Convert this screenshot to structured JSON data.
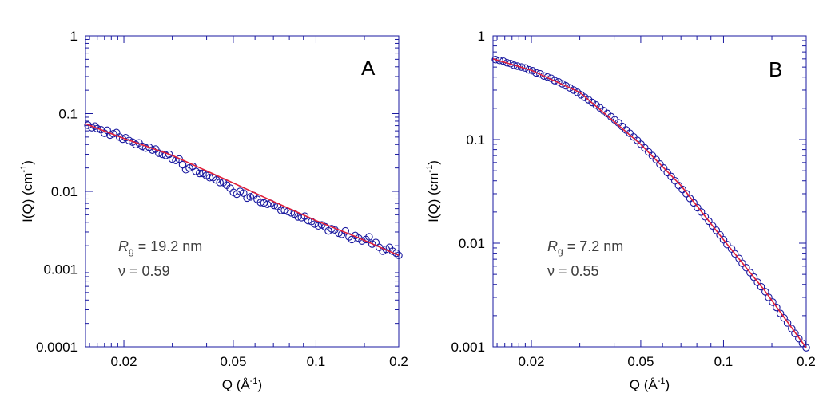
{
  "chart_data": [
    {
      "type": "scatter",
      "panel_label": "A",
      "xlabel": "Q (Å",
      "xlabel_sup": "-1",
      "xlabel_end": ")",
      "ylabel": "I(Q) (cm",
      "ylabel_sup": "-1",
      "ylabel_end": ")",
      "xscale": "log",
      "yscale": "log",
      "xlim": [
        0.0145,
        0.2
      ],
      "ylim": [
        0.0001,
        1
      ],
      "xticks": [
        {
          "v": 0.02,
          "label": "0.02"
        },
        {
          "v": 0.05,
          "label": "0.05"
        },
        {
          "v": 0.1,
          "label": "0.1"
        },
        {
          "v": 0.2,
          "label": "0.2"
        }
      ],
      "yticks": [
        {
          "v": 1,
          "label": "1"
        },
        {
          "v": 0.1,
          "label": "0.1"
        },
        {
          "v": 0.01,
          "label": "0.01"
        },
        {
          "v": 0.001,
          "label": "0.001"
        },
        {
          "v": 0.0001,
          "label": "0.0001"
        }
      ],
      "annotation": {
        "rg_symbol": "R",
        "rg_sub": "g",
        "rg_text": " = 19.2 nm",
        "nu_text": "ν = 0.59"
      },
      "series": [
        {
          "marker": "open-circle",
          "color": "#1a1aa0",
          "x": [
            0.0148,
            0.0153,
            0.0157,
            0.016,
            0.0165,
            0.017,
            0.0174,
            0.0178,
            0.0183,
            0.0188,
            0.0193,
            0.0198,
            0.0203,
            0.0209,
            0.0215,
            0.0221,
            0.0227,
            0.0233,
            0.024,
            0.0247,
            0.0254,
            0.0261,
            0.0268,
            0.0276,
            0.0284,
            0.0292,
            0.03,
            0.0309,
            0.0318,
            0.0327,
            0.0336,
            0.0346,
            0.0356,
            0.0366,
            0.0377,
            0.0388,
            0.0399,
            0.041,
            0.0422,
            0.0434,
            0.0447,
            0.046,
            0.0473,
            0.0487,
            0.0501,
            0.0515,
            0.053,
            0.0545,
            0.0561,
            0.0577,
            0.0594,
            0.0611,
            0.0629,
            0.0647,
            0.0666,
            0.0685,
            0.0705,
            0.0725,
            0.0746,
            0.0768,
            0.079,
            0.0813,
            0.0836,
            0.086,
            0.0885,
            0.091,
            0.0937,
            0.0964,
            0.0991,
            0.102,
            0.105,
            0.108,
            0.111,
            0.114,
            0.117,
            0.121,
            0.124,
            0.128,
            0.132,
            0.135,
            0.139,
            0.143,
            0.147,
            0.152,
            0.156,
            0.16,
            0.165,
            0.17,
            0.175,
            0.18,
            0.185,
            0.19,
            0.196,
            0.2
          ],
          "y": [
            0.071,
            0.066,
            0.069,
            0.064,
            0.062,
            0.056,
            0.061,
            0.053,
            0.055,
            0.057,
            0.05,
            0.047,
            0.049,
            0.045,
            0.043,
            0.04,
            0.042,
            0.038,
            0.036,
            0.037,
            0.034,
            0.035,
            0.031,
            0.03,
            0.029,
            0.03,
            0.026,
            0.025,
            0.026,
            0.022,
            0.019,
            0.02,
            0.021,
            0.018,
            0.017,
            0.017,
            0.016,
            0.015,
            0.015,
            0.014,
            0.013,
            0.013,
            0.012,
            0.011,
            0.0097,
            0.0092,
            0.01,
            0.0095,
            0.0082,
            0.0085,
            0.0088,
            0.0079,
            0.0072,
            0.0071,
            0.0068,
            0.007,
            0.0066,
            0.0064,
            0.0057,
            0.0057,
            0.0055,
            0.0053,
            0.0051,
            0.0047,
            0.0046,
            0.0048,
            0.0042,
            0.0041,
            0.0038,
            0.0036,
            0.0037,
            0.0035,
            0.0031,
            0.0033,
            0.0032,
            0.0029,
            0.0028,
            0.0031,
            0.0026,
            0.0024,
            0.0027,
            0.0025,
            0.0023,
            0.0024,
            0.0026,
            0.0021,
            0.0022,
            0.0019,
            0.0017,
            0.0018,
            0.0019,
            0.0017,
            0.0016,
            0.0015
          ]
        },
        {
          "marker": "line",
          "color": "#e0203a",
          "x": [
            0.0145,
            0.02,
            0.03,
            0.05,
            0.07,
            0.1,
            0.14,
            0.2
          ],
          "y": [
            0.074,
            0.048,
            0.029,
            0.0128,
            0.0074,
            0.0042,
            0.0026,
            0.0015
          ]
        }
      ]
    },
    {
      "type": "scatter",
      "panel_label": "B",
      "xlabel": "Q (Å",
      "xlabel_sup": "-1",
      "xlabel_end": ")",
      "ylabel": "I(Q) (cm",
      "ylabel_sup": "-1",
      "ylabel_end": ")",
      "xscale": "log",
      "yscale": "log",
      "xlim": [
        0.0145,
        0.2
      ],
      "ylim": [
        0.001,
        1
      ],
      "xticks": [
        {
          "v": 0.02,
          "label": "0.02"
        },
        {
          "v": 0.05,
          "label": "0.05"
        },
        {
          "v": 0.1,
          "label": "0.1"
        },
        {
          "v": 0.2,
          "label": "0.2"
        }
      ],
      "yticks": [
        {
          "v": 1,
          "label": "1"
        },
        {
          "v": 0.1,
          "label": "0.1"
        },
        {
          "v": 0.01,
          "label": "0.01"
        },
        {
          "v": 0.001,
          "label": "0.001"
        }
      ],
      "annotation": {
        "rg_symbol": "R",
        "rg_sub": "g",
        "rg_text": " = 7.2 nm",
        "nu_text": "ν = 0.55"
      },
      "series": [
        {
          "marker": "open-circle",
          "color": "#1a1aa0",
          "x": [
            0.0148,
            0.0153,
            0.0158,
            0.0163,
            0.0168,
            0.0173,
            0.0178,
            0.0184,
            0.019,
            0.0196,
            0.0202,
            0.0208,
            0.0215,
            0.0222,
            0.0229,
            0.0236,
            0.0243,
            0.0251,
            0.0259,
            0.0267,
            0.0276,
            0.0285,
            0.0294,
            0.0303,
            0.0313,
            0.0323,
            0.0333,
            0.0344,
            0.0355,
            0.0366,
            0.0378,
            0.039,
            0.0402,
            0.0415,
            0.0428,
            0.0442,
            0.0456,
            0.0471,
            0.0486,
            0.0501,
            0.0517,
            0.0534,
            0.0551,
            0.0569,
            0.0587,
            0.0606,
            0.0625,
            0.0645,
            0.0666,
            0.0687,
            0.0709,
            0.0732,
            0.0755,
            0.0779,
            0.0804,
            0.083,
            0.0857,
            0.0884,
            0.0912,
            0.0941,
            0.0971,
            0.1,
            0.103,
            0.107,
            0.11,
            0.114,
            0.117,
            0.121,
            0.125,
            0.129,
            0.133,
            0.137,
            0.142,
            0.146,
            0.151,
            0.156,
            0.161,
            0.166,
            0.171,
            0.177,
            0.182,
            0.188,
            0.194,
            0.2
          ],
          "y": [
            0.59,
            0.58,
            0.57,
            0.55,
            0.54,
            0.52,
            0.51,
            0.5,
            0.49,
            0.47,
            0.46,
            0.44,
            0.43,
            0.41,
            0.4,
            0.39,
            0.37,
            0.36,
            0.345,
            0.33,
            0.315,
            0.3,
            0.285,
            0.27,
            0.255,
            0.242,
            0.228,
            0.215,
            0.202,
            0.19,
            0.178,
            0.166,
            0.155,
            0.145,
            0.134,
            0.124,
            0.115,
            0.106,
            0.098,
            0.09,
            0.083,
            0.076,
            0.07,
            0.064,
            0.058,
            0.053,
            0.048,
            0.044,
            0.04,
            0.036,
            0.033,
            0.03,
            0.027,
            0.0245,
            0.022,
            0.02,
            0.018,
            0.0163,
            0.0147,
            0.0133,
            0.012,
            0.0108,
            0.0097,
            0.0088,
            0.0079,
            0.0071,
            0.0064,
            0.0058,
            0.0052,
            0.0047,
            0.0042,
            0.0038,
            0.0034,
            0.003,
            0.0027,
            0.0024,
            0.0021,
            0.0019,
            0.0017,
            0.0015,
            0.00135,
            0.0012,
            0.00108,
            0.00098
          ]
        },
        {
          "marker": "line",
          "color": "#e0203a",
          "x": [
            0.0145,
            0.02,
            0.03,
            0.05,
            0.07,
            0.1,
            0.14,
            0.2
          ],
          "y": [
            0.6,
            0.465,
            0.285,
            0.09,
            0.036,
            0.0108,
            0.0036,
            0.00098
          ]
        }
      ]
    }
  ]
}
